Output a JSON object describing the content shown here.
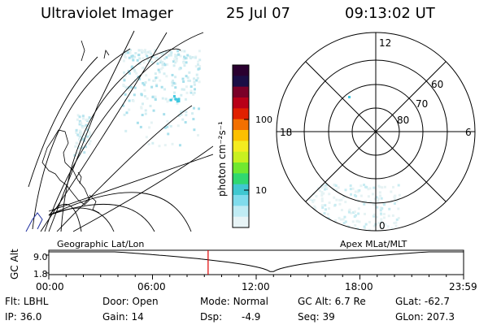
{
  "header": {
    "title": "Ultraviolet Imager",
    "date": "25 Jul 07",
    "time": "09:13:02 UT"
  },
  "colorbar": {
    "unit_label": "photon cm⁻²s⁻¹",
    "ticks": [
      "100",
      "10"
    ],
    "colors": [
      "#2a0030",
      "#1a0e46",
      "#7a0028",
      "#b80018",
      "#e02000",
      "#f27000",
      "#fcc000",
      "#f4ec20",
      "#c8f020",
      "#70e830",
      "#30d870",
      "#40c8d0",
      "#80dcec",
      "#c0ecf4",
      "#e8f4f6"
    ]
  },
  "geo_panel": {
    "label": "Geographic Lat/Lon"
  },
  "polar_panel": {
    "label": "Apex MLat/MLT",
    "mlt_labels": [
      "12",
      "18",
      "6",
      "0"
    ],
    "lat_labels": [
      "60",
      "70",
      "80"
    ]
  },
  "timeline": {
    "axis_label": "GC Alt",
    "y_ticks": [
      "9.0",
      "1.8"
    ],
    "x_ticks": [
      "00:00",
      "06:00",
      "12:00",
      "18:00",
      "23:59"
    ],
    "marker_time_hours": 9.2175,
    "marker_color": "#e00000"
  },
  "status": {
    "filter_label": "Flt:",
    "filter_value": "LBHL",
    "ip_label": "IP:",
    "ip_value": "36.0",
    "door_label": "Door:",
    "door_value": "Open",
    "gain_label": "Gain:",
    "gain_value": "14",
    "mode_label": "Mode:",
    "mode_value": "Normal",
    "dsp_label": "Dsp:",
    "dsp_value": "-4.9",
    "gcalt_label": "GC Alt:",
    "gcalt_value": "6.7 Re",
    "seq_label": "Seq:",
    "seq_value": "39",
    "glat_label": "GLat:",
    "glat_value": "-62.7",
    "glon_label": "GLon:",
    "glon_value": "207.3"
  }
}
